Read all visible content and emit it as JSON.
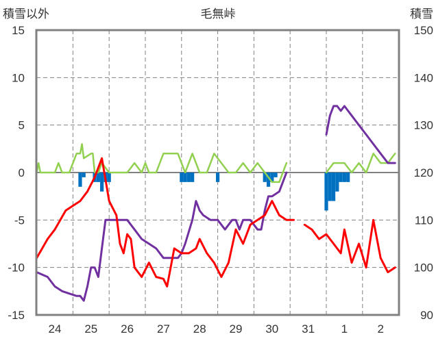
{
  "chart_data": {
    "type": "line",
    "title": "毛無峠",
    "left_axis": {
      "title": "積雪以外",
      "ylim": [
        -15,
        15
      ],
      "ticks": [
        "15",
        "10",
        "5",
        "0",
        "-5",
        "-10",
        "-15"
      ]
    },
    "right_axis": {
      "title": "積雪",
      "ylim": [
        90,
        150
      ],
      "ticks": [
        "150",
        "140",
        "130",
        "120",
        "110",
        "100",
        "90"
      ]
    },
    "x_axis": {
      "categories": [
        "24",
        "25",
        "26",
        "27",
        "28",
        "29",
        "30",
        "31",
        "1",
        "2"
      ]
    },
    "grid": true,
    "colors": {
      "temperature": "#ff0000",
      "snow_depth": "#7030a0",
      "wind": "#92d050",
      "precipitation": "#0070c0",
      "frame": "#808080",
      "grid": "#808080"
    },
    "series": [
      {
        "key": "temperature",
        "axis": "left",
        "kind": "line",
        "x": [
          -0.5,
          -0.2,
          0.0,
          0.3,
          0.5,
          0.7,
          0.9,
          1.1,
          1.3,
          1.5,
          1.7,
          1.8,
          1.9,
          2.0,
          2.1,
          2.2,
          2.4,
          2.6,
          2.8,
          3.0,
          3.1,
          3.3,
          3.5,
          3.7,
          3.9,
          4.0,
          4.2,
          4.4,
          4.6,
          4.8,
          5.0,
          5.2,
          5.4,
          5.6,
          5.8,
          6.0,
          6.2,
          6.4,
          6.5,
          6.6,
          null,
          6.9,
          7.1,
          7.3,
          7.5,
          7.7,
          7.9,
          8.0,
          8.2,
          8.4,
          8.6,
          8.8,
          9.0,
          9.2,
          9.4
        ],
        "y": [
          -9,
          -7,
          -6,
          -4,
          -3.5,
          -3,
          -2,
          -0.5,
          1.5,
          -3,
          -4.5,
          -7.5,
          -8.5,
          -6.5,
          -7,
          -10,
          -11,
          -9.5,
          -11,
          -11.2,
          -12,
          -8,
          -8.5,
          -8.5,
          -8,
          -7,
          -8.5,
          -9.5,
          -11,
          -9.5,
          -6,
          -7.5,
          -5.5,
          -5,
          -4.5,
          -3,
          -4.5,
          -5,
          -5,
          -5,
          null,
          -5.5,
          -6,
          -7,
          -6.5,
          -7.5,
          -8.5,
          -6,
          -9.5,
          -7.5,
          -10,
          -5,
          -9,
          -10.5,
          -10
        ]
      },
      {
        "key": "snow_depth",
        "axis": "right",
        "kind": "line",
        "x": [
          -0.5,
          -0.2,
          0.0,
          0.2,
          0.4,
          0.6,
          0.7,
          0.8,
          0.9,
          1.0,
          1.1,
          1.2,
          1.3,
          1.4,
          1.5,
          1.6,
          1.8,
          2.0,
          2.2,
          2.4,
          2.6,
          2.8,
          3.0,
          3.2,
          3.4,
          3.5,
          3.6,
          3.8,
          3.9,
          4.0,
          4.1,
          4.3,
          4.5,
          4.7,
          4.9,
          5.0,
          5.1,
          5.2,
          5.3,
          5.4,
          5.5,
          5.6,
          5.7,
          5.8,
          5.9,
          6.0,
          6.2,
          6.4,
          null,
          7.5,
          7.6,
          7.7,
          7.8,
          7.9,
          8.0,
          8.2,
          8.4,
          8.6,
          8.8,
          9.0,
          9.2,
          9.4
        ],
        "y": [
          99,
          98,
          96,
          95,
          94.5,
          94,
          94,
          93,
          96,
          100,
          100,
          98,
          104,
          110,
          110,
          110,
          110,
          110,
          108,
          106,
          105,
          104,
          102,
          102,
          102,
          103,
          105,
          110,
          114,
          112,
          111,
          110,
          110,
          108,
          110,
          110,
          108,
          110,
          110,
          110,
          109,
          108,
          108,
          112,
          115,
          115,
          116,
          120,
          null,
          128,
          132,
          134,
          134,
          133,
          134,
          132,
          130,
          128,
          126,
          124,
          122,
          122
        ]
      },
      {
        "key": "wind",
        "axis": "left",
        "kind": "line",
        "x": [
          -0.5,
          -0.45,
          -0.4,
          -0.3,
          -0.2,
          0.0,
          0.1,
          0.2,
          0.4,
          0.6,
          0.7,
          0.75,
          0.8,
          1.0,
          1.05,
          1.1,
          1.2,
          1.3,
          1.5,
          1.8,
          2.0,
          2.2,
          2.4,
          2.5,
          2.6,
          2.8,
          3.0,
          3.2,
          3.4,
          3.6,
          3.8,
          4.0,
          4.2,
          4.4,
          4.6,
          4.8,
          5.0,
          5.2,
          5.4,
          5.6,
          5.8,
          6.0,
          6.2,
          6.4,
          null,
          7.5,
          7.7,
          8.0,
          8.2,
          8.4,
          8.6,
          8.8,
          9.0,
          9.2,
          9.4
        ],
        "y": [
          0,
          1,
          0,
          0,
          0,
          0,
          1,
          0,
          0,
          2,
          2,
          3,
          1.5,
          2,
          2,
          0,
          0,
          1,
          0,
          0,
          0,
          1,
          0,
          1,
          0,
          0,
          2,
          2,
          2,
          0,
          2,
          0,
          0,
          2,
          1,
          0,
          0,
          1,
          0,
          1,
          0,
          -1,
          -1,
          1,
          null,
          0,
          1,
          1,
          0,
          1,
          0,
          2,
          1,
          1,
          2
        ]
      },
      {
        "key": "precipitation",
        "axis": "left",
        "kind": "bar",
        "x": [
          0.7,
          0.8,
          1.1,
          1.2,
          1.3,
          1.4,
          1.5,
          3.5,
          3.6,
          3.7,
          3.8,
          4.5,
          5.8,
          5.9,
          6.0,
          6.1,
          7.5,
          7.6,
          7.7,
          7.8,
          7.9,
          8.0,
          8.1
        ],
        "y": [
          -1.5,
          -0.5,
          -1,
          -1,
          -2,
          -1,
          -1,
          -1,
          -1,
          -1,
          -1,
          -1,
          -1,
          -1.5,
          -1,
          -0.5,
          -4,
          -3,
          -3,
          -2,
          -1,
          -1,
          -1
        ]
      }
    ]
  }
}
